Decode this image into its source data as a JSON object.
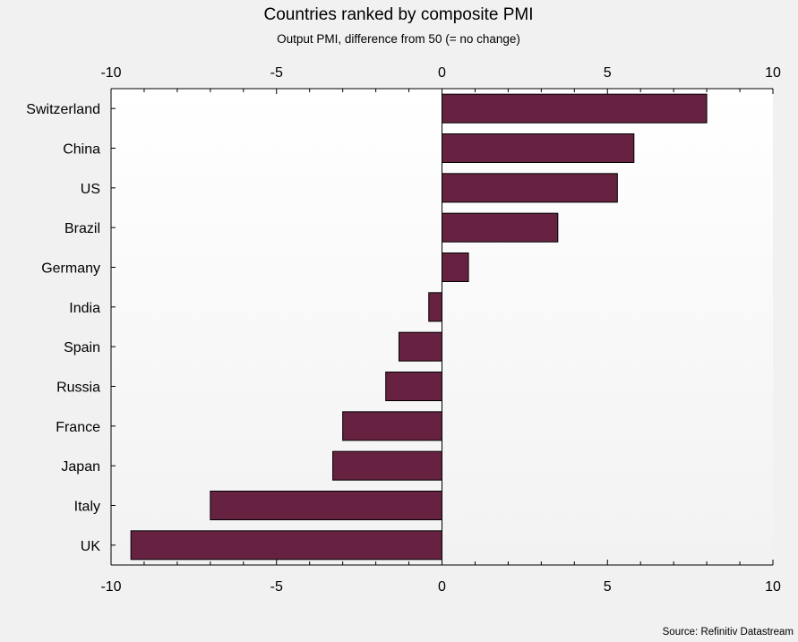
{
  "chart_data": {
    "type": "bar",
    "orientation": "horizontal",
    "title": "Countries ranked by composite PMI",
    "subtitle": "Output PMI, difference from 50  (= no change)",
    "source": "Source: Refinitiv Datastream",
    "categories": [
      "Switzerland",
      "China",
      "US",
      "Brazil",
      "Germany",
      "India",
      "Spain",
      "Russia",
      "France",
      "Japan",
      "Italy",
      "UK"
    ],
    "values": [
      8.0,
      5.8,
      5.3,
      3.5,
      0.8,
      -0.4,
      -1.3,
      -1.7,
      -3.0,
      -3.3,
      -7.0,
      -9.4
    ],
    "xlim": [
      -10,
      10
    ],
    "xticks": [
      -10,
      -5,
      0,
      5,
      10
    ],
    "xtick_labels": [
      "-10",
      "-5",
      "0",
      "5",
      "10"
    ],
    "axis_position": "top-and-bottom",
    "grid": false,
    "legend": "none",
    "colors": {
      "bar_fill": "#662240",
      "bar_stroke": "#000000",
      "plot_background_top": "#ffffff",
      "plot_background_bottom": "#f2f2f2",
      "page_background": "#f1f1f1"
    }
  }
}
